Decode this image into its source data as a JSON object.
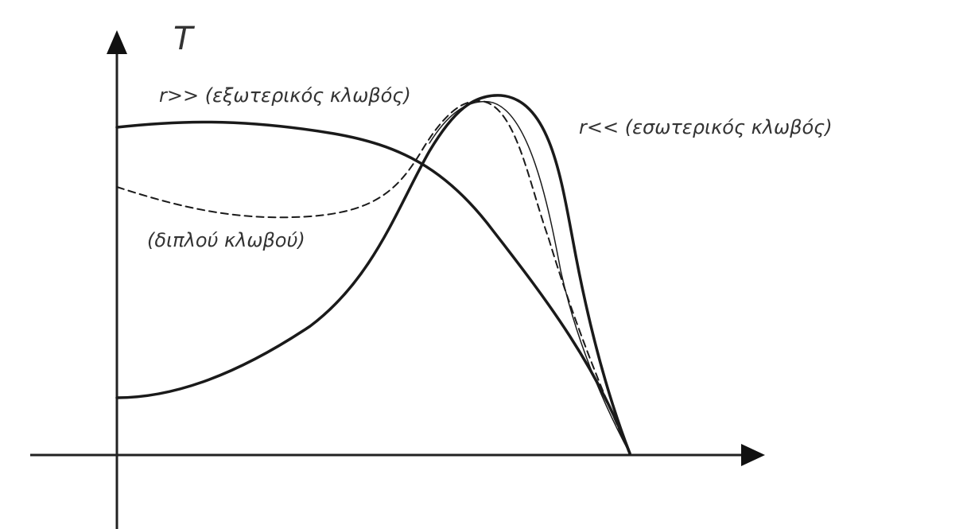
{
  "axis": {
    "y_label": "T"
  },
  "curves": [
    {
      "label": "r>> (εξωτερικός κλωβός)"
    },
    {
      "label": "r<< (εσωτερικός κλωβός)"
    },
    {
      "label": "(διπλού κλωβού)"
    }
  ]
}
